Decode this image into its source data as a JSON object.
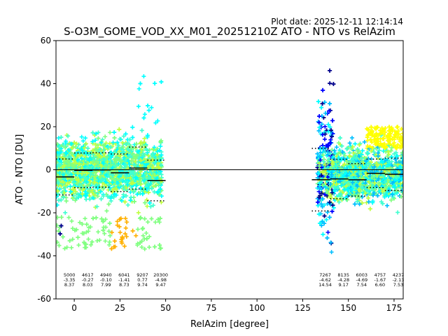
{
  "plot_date": "Plot date: 2025-12-11 12:14:14",
  "chart_data": {
    "type": "scatter",
    "title": "S-O3M_GOME_VOD_XX_M01_20251210Z ATO - NTO vs RelAzim",
    "xlabel": "RelAzim [degree]",
    "ylabel": "ATO - NTO [DU]",
    "xlim": [
      -10,
      180
    ],
    "ylim": [
      -60,
      60
    ],
    "xticks": [
      0,
      25,
      50,
      75,
      100,
      125,
      150,
      175
    ],
    "yticks": [
      -60,
      -40,
      -20,
      0,
      20,
      40,
      60
    ],
    "zero_line": 0,
    "point_colors": [
      "#00008b",
      "#0000ff",
      "#00bfff",
      "#00ffff",
      "#40ffd0",
      "#80ff80",
      "#c0ff40",
      "#ffff00",
      "#ffb000"
    ],
    "groups": [
      {
        "x_range": [
          -10,
          0
        ],
        "center": 0,
        "count": "5000",
        "mean": "-3.35",
        "sd": "8.37"
      },
      {
        "x_range": [
          0,
          10
        ],
        "center": 10,
        "count": "4617",
        "mean": "-0.27",
        "sd": "8.03"
      },
      {
        "x_range": [
          10,
          20
        ],
        "center": 20,
        "count": "4940",
        "mean": "-0.10",
        "sd": "7.99"
      },
      {
        "x_range": [
          20,
          30
        ],
        "center": 30,
        "count": "6041",
        "mean": "-1.41",
        "sd": "8.73"
      },
      {
        "x_range": [
          30,
          40
        ],
        "center": 40,
        "count": "9207",
        "mean": "0.77",
        "sd": "9.74"
      },
      {
        "x_range": [
          40,
          50
        ],
        "center": 50,
        "count": "20300",
        "mean": "-4.98",
        "sd": "9.47"
      },
      {
        "x_range": [
          130,
          140
        ],
        "center": 140,
        "count": "7267",
        "mean": "-4.62",
        "sd": "14.54"
      },
      {
        "x_range": [
          140,
          150
        ],
        "center": 150,
        "count": "8135",
        "mean": "-4.28",
        "sd": "9.17"
      },
      {
        "x_range": [
          150,
          160
        ],
        "center": 160,
        "count": "6003",
        "mean": "-4.69",
        "sd": "7.54"
      },
      {
        "x_range": [
          160,
          170
        ],
        "center": 170,
        "count": "4757",
        "mean": "-1.67",
        "sd": "6.60"
      },
      {
        "x_range": [
          170,
          180
        ],
        "center": 180,
        "count": "4237",
        "mean": "-2.13",
        "sd": "7.53"
      }
    ]
  }
}
